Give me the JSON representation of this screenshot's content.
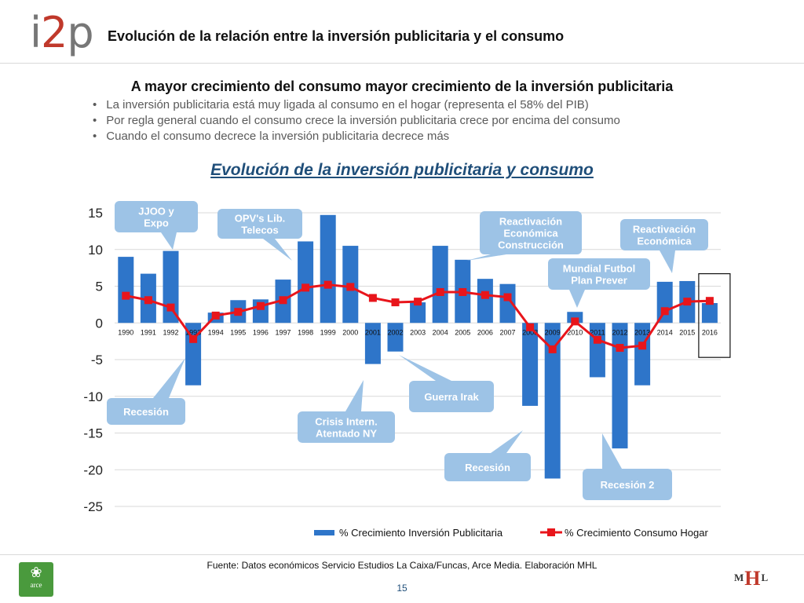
{
  "header": {
    "logo_text_1": "i",
    "logo_text_2": "2",
    "logo_text_3": "p",
    "title": "Evolución de la relación entre la inversión publicitaria y el consumo"
  },
  "intro": {
    "headline": "A mayor crecimiento del consumo mayor crecimiento de la inversión publicitaria",
    "bullets": [
      "La inversión publicitaria está muy ligada al consumo en el hogar (representa el 58% del PIB)",
      "Por regla general cuando el consumo crece la inversión publicitaria crece por encima del consumo",
      "Cuando el consumo decrece la inversión publicitaria decrece más"
    ]
  },
  "chart_data": {
    "type": "bar",
    "title": "Evolución de la inversión publicitaria y consumo",
    "categories": [
      "1990",
      "1991",
      "1992",
      "1993",
      "1994",
      "1995",
      "1996",
      "1997",
      "1998",
      "1999",
      "2000",
      "2001",
      "2002",
      "2003",
      "2004",
      "2005",
      "2006",
      "2007",
      "2008",
      "2009",
      "2010",
      "2011",
      "2012",
      "2013",
      "2014",
      "2015",
      "2016"
    ],
    "series": [
      {
        "name": "% Crecimiento Inversión Publicitaria",
        "type": "bar",
        "color": "#2e75c9",
        "values": [
          9,
          6.7,
          9.8,
          -8.5,
          1.4,
          3.1,
          3.2,
          5.9,
          11.1,
          14.7,
          10.5,
          -5.6,
          -3.9,
          2.8,
          10.5,
          8.6,
          6,
          5.3,
          -11.3,
          -21.2,
          1.5,
          -7.4,
          -17.1,
          -8.5,
          5.6,
          5.7,
          2.7
        ]
      },
      {
        "name": "% Crecimiento Consumo Hogar",
        "type": "line",
        "color": "#e8151b",
        "values": [
          3.7,
          3.1,
          2.1,
          -2.2,
          1,
          1.5,
          2.3,
          3.1,
          4.8,
          5.2,
          4.9,
          3.4,
          2.8,
          2.9,
          4.2,
          4.2,
          3.8,
          3.5,
          -0.6,
          -3.6,
          0.2,
          -2.3,
          -3.4,
          -3.1,
          1.6,
          2.9,
          3
        ]
      }
    ],
    "yticks": [
      15,
      10,
      5,
      0,
      -5,
      -10,
      -15,
      -20,
      -25
    ],
    "ylim": [
      -25,
      15
    ],
    "highlight_category": "2016",
    "legend_position": "bottom-right",
    "annotations": [
      {
        "text": [
          "JJOO y",
          "Expo"
        ],
        "target": "1992"
      },
      {
        "text": [
          "OPV's Lib.",
          "Telecos"
        ],
        "target": "1997"
      },
      {
        "text": [
          "Reactivación",
          "Económica",
          "Construcción"
        ],
        "target": "2004"
      },
      {
        "text": [
          "Reactivación",
          "Económica"
        ],
        "target": "2014"
      },
      {
        "text": [
          "Mundial Futbol",
          "Plan Prever"
        ],
        "target": "2010"
      },
      {
        "text": [
          "Recesión"
        ],
        "target": "1993"
      },
      {
        "text": [
          "Crisis Intern.",
          "Atentado NY"
        ],
        "target": "2001"
      },
      {
        "text": [
          "Guerra Irak"
        ],
        "target": "2002"
      },
      {
        "text": [
          "Recesión"
        ],
        "target": "2008"
      },
      {
        "text": [
          "Recesión 2"
        ],
        "target": "2012"
      }
    ]
  },
  "footer": {
    "source": "Fuente: Datos económicos Servicio Estudios La Caixa/Funcas, Arce Media. Elaboración MHL",
    "page": "15",
    "arce_label": "arce",
    "mhl_left": "M",
    "mhl_mid": "H",
    "mhl_right": "L"
  },
  "icons": [
    "arce-leaf-icon"
  ]
}
